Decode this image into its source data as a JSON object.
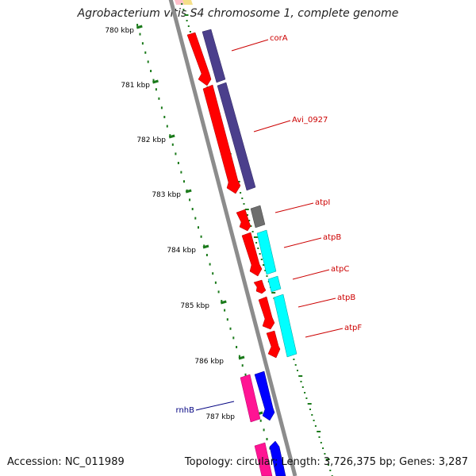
{
  "title": "Agrobacterium vitis S4 chromosome 1, complete genome",
  "footer": {
    "accession": "Accession: NC_011989",
    "summary": "Topology: circular; Length: 3,726,375 bp; Genes: 3,287"
  },
  "colors": {
    "background": "#ffffff",
    "backbone": "#8c8c8c",
    "ruler_ticks": "#1a7a1a",
    "gene_label": "#cc0000",
    "gene_label_leader": "#cc0000",
    "rnhB_label": "#000080",
    "red_feature": "#ff0000",
    "navy_feature": "#4b3f8c",
    "cyan_feature": "#00ffff",
    "gray_feature": "#6e6e6e",
    "pink_feature": "#ff1493",
    "blue_feature": "#0000ff",
    "yellow_feature": "#f5e08a"
  },
  "ruler_labels": [
    "780 kbp",
    "781 kbp",
    "782 kbp",
    "783 kbp",
    "784 kbp",
    "785 kbp",
    "786 kbp",
    "787 kbp"
  ],
  "gene_labels": [
    "corA",
    "Avi_0927",
    "atpI",
    "atpB",
    "atpC",
    "atpB",
    "atpF",
    "rnhB"
  ]
}
